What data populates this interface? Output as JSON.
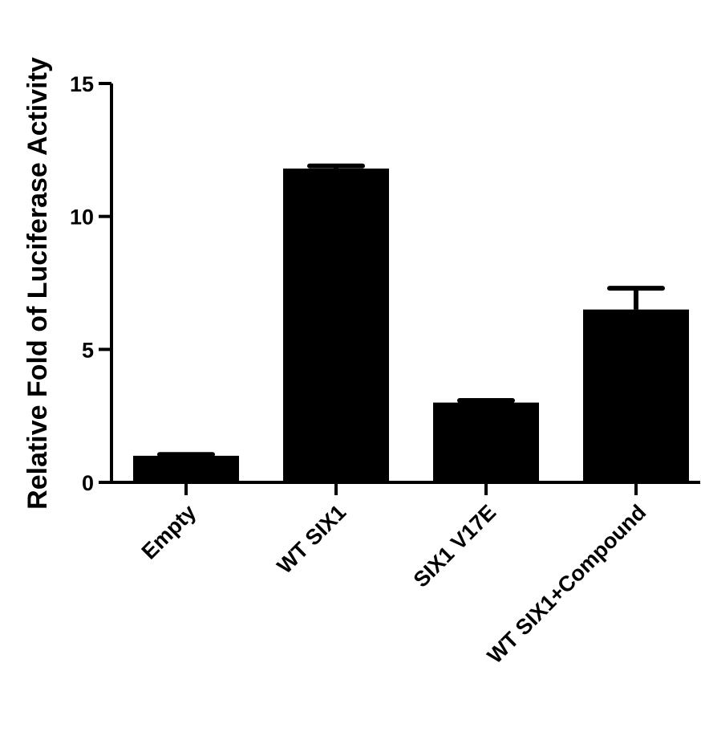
{
  "chart_data": {
    "type": "bar",
    "categories": [
      "Empty",
      "WT SIX1",
      "SIX1 V17E",
      "WT SIX1+Compound"
    ],
    "values": [
      1.0,
      11.8,
      3.0,
      6.5
    ],
    "errors": [
      0.05,
      0.1,
      0.08,
      0.8
    ],
    "xlabel": "",
    "ylabel": "Relative Fold of Luciferase Activity",
    "ylim": [
      0,
      15
    ],
    "yticks": [
      0,
      5,
      10,
      15
    ],
    "ytick_labels": [
      "0",
      "5",
      "10",
      "15"
    ],
    "grid": false,
    "bar_color": "#000000"
  }
}
